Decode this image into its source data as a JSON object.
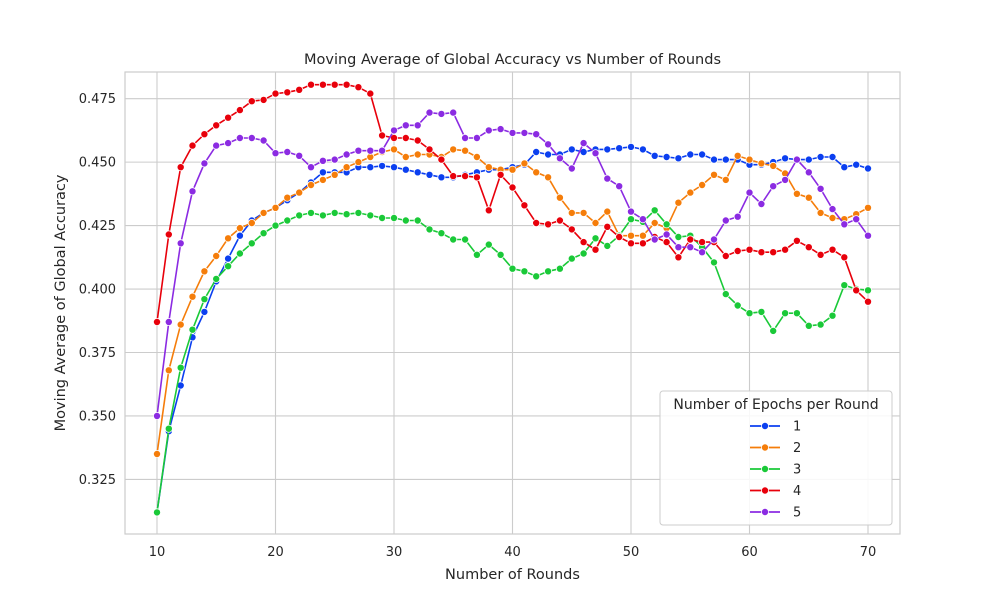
{
  "chart_data": {
    "type": "line",
    "title": "Moving Average of Global Accuracy vs Number of Rounds",
    "xlabel": "Number of Rounds",
    "ylabel": "Moving Average of Global Accuracy",
    "xlim": [
      7.3,
      72.7
    ],
    "ylim": [
      0.3035,
      0.4855
    ],
    "grid": true,
    "x_ticks": [
      10,
      20,
      30,
      40,
      50,
      60,
      70
    ],
    "y_ticks": [
      0.325,
      0.35,
      0.375,
      0.4,
      0.425,
      0.45,
      0.475
    ],
    "y_tick_labels": [
      "0.325",
      "0.350",
      "0.375",
      "0.400",
      "0.425",
      "0.450",
      "0.475"
    ],
    "legend": {
      "title": "Number of Epochs per Round",
      "position": "lower-right"
    },
    "x": [
      10,
      11,
      12,
      13,
      14,
      15,
      16,
      17,
      18,
      19,
      20,
      21,
      22,
      23,
      24,
      25,
      26,
      27,
      28,
      29,
      30,
      31,
      32,
      33,
      34,
      35,
      36,
      37,
      38,
      39,
      40,
      41,
      42,
      43,
      44,
      45,
      46,
      47,
      48,
      49,
      50,
      51,
      52,
      53,
      54,
      55,
      56,
      57,
      58,
      59,
      60,
      61,
      62,
      63,
      64,
      65,
      66,
      67,
      68,
      69,
      70
    ],
    "series": [
      {
        "name": "1",
        "color": "#0b3ff0",
        "values": [
          0.312,
          0.344,
          0.362,
          0.381,
          0.391,
          0.403,
          0.412,
          0.421,
          0.427,
          0.43,
          0.432,
          0.435,
          0.438,
          0.442,
          0.446,
          0.446,
          0.446,
          0.448,
          0.448,
          0.4485,
          0.448,
          0.447,
          0.446,
          0.445,
          0.444,
          0.444,
          0.445,
          0.446,
          0.447,
          0.447,
          0.448,
          0.449,
          0.454,
          0.453,
          0.453,
          0.455,
          0.454,
          0.455,
          0.455,
          0.4555,
          0.456,
          0.455,
          0.4525,
          0.452,
          0.4515,
          0.453,
          0.453,
          0.451,
          0.451,
          0.451,
          0.449,
          0.449,
          0.45,
          0.4515,
          0.451,
          0.451,
          0.452,
          0.452,
          0.448,
          0.449,
          0.4475
        ]
      },
      {
        "name": "2",
        "color": "#f57d0a",
        "values": [
          0.335,
          0.368,
          0.386,
          0.397,
          0.407,
          0.413,
          0.42,
          0.424,
          0.426,
          0.43,
          0.432,
          0.436,
          0.438,
          0.441,
          0.443,
          0.445,
          0.448,
          0.45,
          0.452,
          0.454,
          0.455,
          0.452,
          0.453,
          0.453,
          0.452,
          0.455,
          0.4545,
          0.452,
          0.448,
          0.447,
          0.447,
          0.4495,
          0.446,
          0.444,
          0.436,
          0.43,
          0.43,
          0.426,
          0.4305,
          0.421,
          0.421,
          0.421,
          0.426,
          0.424,
          0.434,
          0.438,
          0.441,
          0.445,
          0.443,
          0.4525,
          0.451,
          0.4495,
          0.4485,
          0.4455,
          0.4375,
          0.436,
          0.43,
          0.428,
          0.4275,
          0.4295,
          0.432
        ]
      },
      {
        "name": "3",
        "color": "#1ac938",
        "values": [
          0.312,
          0.345,
          0.369,
          0.384,
          0.396,
          0.404,
          0.409,
          0.414,
          0.418,
          0.422,
          0.425,
          0.427,
          0.429,
          0.43,
          0.429,
          0.43,
          0.4295,
          0.43,
          0.429,
          0.428,
          0.428,
          0.427,
          0.427,
          0.4235,
          0.422,
          0.4195,
          0.4195,
          0.4135,
          0.4175,
          0.4135,
          0.408,
          0.407,
          0.405,
          0.407,
          0.408,
          0.412,
          0.414,
          0.42,
          0.417,
          0.421,
          0.4275,
          0.4265,
          0.431,
          0.4255,
          0.4205,
          0.421,
          0.4165,
          0.4105,
          0.398,
          0.3935,
          0.3905,
          0.391,
          0.3835,
          0.3905,
          0.3905,
          0.3855,
          0.386,
          0.3895,
          0.4015,
          0.4,
          0.3995
        ]
      },
      {
        "name": "4",
        "color": "#e8000b",
        "values": [
          0.387,
          0.4215,
          0.448,
          0.4565,
          0.461,
          0.4645,
          0.4675,
          0.4705,
          0.474,
          0.4745,
          0.477,
          0.4775,
          0.4785,
          0.4805,
          0.4805,
          0.4805,
          0.4805,
          0.4795,
          0.477,
          0.4605,
          0.4595,
          0.4595,
          0.4585,
          0.455,
          0.451,
          0.4445,
          0.4445,
          0.444,
          0.431,
          0.445,
          0.44,
          0.433,
          0.426,
          0.4255,
          0.427,
          0.4235,
          0.4185,
          0.4155,
          0.4245,
          0.4205,
          0.418,
          0.418,
          0.4205,
          0.4185,
          0.4125,
          0.4195,
          0.4185,
          0.4185,
          0.413,
          0.415,
          0.4155,
          0.4145,
          0.4145,
          0.4155,
          0.419,
          0.4165,
          0.4135,
          0.4155,
          0.4125,
          0.3995,
          0.395
        ]
      },
      {
        "name": "5",
        "color": "#8b2be2",
        "values": [
          0.35,
          0.387,
          0.418,
          0.4385,
          0.4495,
          0.4565,
          0.4575,
          0.4595,
          0.4595,
          0.4585,
          0.4535,
          0.454,
          0.4525,
          0.448,
          0.4505,
          0.451,
          0.453,
          0.4545,
          0.4545,
          0.4545,
          0.4625,
          0.4645,
          0.4645,
          0.4695,
          0.469,
          0.4695,
          0.4595,
          0.4595,
          0.4625,
          0.463,
          0.4615,
          0.4615,
          0.461,
          0.457,
          0.4515,
          0.4475,
          0.4575,
          0.4535,
          0.4435,
          0.4405,
          0.4305,
          0.4275,
          0.4195,
          0.4215,
          0.4165,
          0.4165,
          0.4145,
          0.4195,
          0.427,
          0.4285,
          0.438,
          0.4335,
          0.4405,
          0.443,
          0.451,
          0.446,
          0.4395,
          0.4315,
          0.4255,
          0.4275,
          0.421
        ]
      }
    ]
  }
}
